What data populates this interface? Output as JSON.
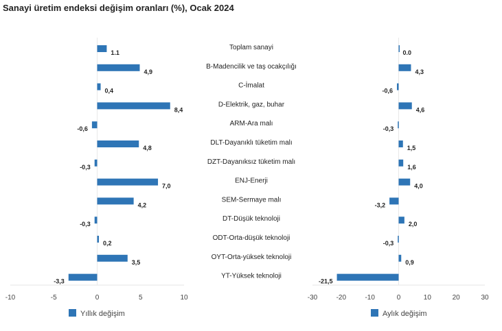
{
  "title": "Sanayi üretim endeksi değişim oranları (%), Ocak 2024",
  "chart_data": {
    "type": "bar",
    "title": "Sanayi üretim endeksi değişim oranları (%), Ocak 2024",
    "categories": [
      "Toplam sanayi",
      "B-Madencilik ve taş ocakçılığı",
      "C-İmalat",
      "D-Elektrik, gaz, buhar",
      "ARM-Ara malı",
      "DLT-Dayanıklı tüketim malı",
      "DZT-Dayanıksız tüketim malı",
      "ENJ-Enerji",
      "SEM-Sermaye malı",
      "DT-Düşük teknoloji",
      "ODT-Orta-düşük teknoloji",
      "OYT-Orta-yüksek teknoloji",
      "YT-Yüksek teknoloji"
    ],
    "series": [
      {
        "name": "Yıllık değişim",
        "values": [
          1.1,
          4.9,
          0.4,
          8.4,
          -0.6,
          4.8,
          -0.3,
          7.0,
          4.2,
          -0.3,
          0.2,
          3.5,
          -3.3
        ],
        "labels": [
          "1.1",
          "4,9",
          "0,4",
          "8,4",
          "-0,6",
          "4,8",
          "-0,3",
          "7,0",
          "4,2",
          "-0,3",
          "0,2",
          "3,5",
          "-3,3"
        ],
        "xlim": [
          -10,
          10
        ],
        "ticks": [
          -10,
          -5,
          0,
          5,
          10
        ],
        "tick_labels": [
          "-10",
          "-5",
          "0",
          "5",
          "10"
        ]
      },
      {
        "name": "Aylık değişim",
        "values": [
          0.0,
          4.3,
          -0.6,
          4.6,
          -0.3,
          1.5,
          1.6,
          4.0,
          -3.2,
          2.0,
          -0.3,
          0.9,
          -21.5
        ],
        "labels": [
          "0.0",
          "4,3",
          "-0,6",
          "4,6",
          "-0,3",
          "1,5",
          "1,6",
          "4,0",
          "-3,2",
          "2,0",
          "-0,3",
          "0,9",
          "-21,5"
        ],
        "xlim": [
          -30,
          30
        ],
        "ticks": [
          -30,
          -20,
          -10,
          0,
          10,
          20,
          30
        ],
        "tick_labels": [
          "-30",
          "-20",
          "-10",
          "0",
          "10",
          "20",
          "30"
        ]
      }
    ],
    "legend": "bottom",
    "color": "#2e75b6"
  }
}
